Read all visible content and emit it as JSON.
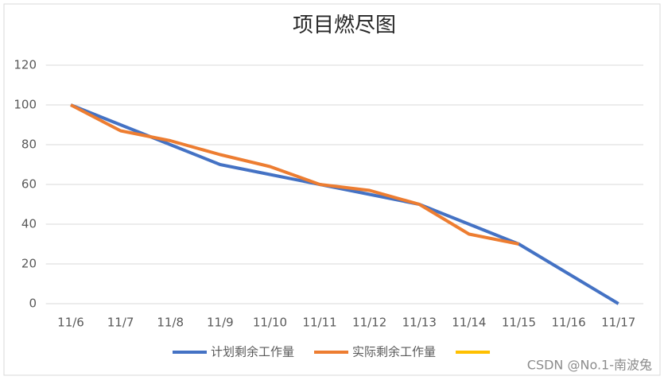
{
  "chart_data": {
    "type": "line",
    "title": "项目燃尽图",
    "categories": [
      "11/6",
      "11/7",
      "11/8",
      "11/9",
      "11/10",
      "11/11",
      "11/12",
      "11/13",
      "11/14",
      "11/15",
      "11/16",
      "11/17"
    ],
    "series": [
      {
        "name": "计划剩余工作量",
        "color": "#4472c4",
        "values": [
          100,
          90,
          80,
          70,
          65,
          60,
          55,
          50,
          40,
          30,
          15,
          0
        ]
      },
      {
        "name": "实际剩余工作量",
        "color": "#ed7d31",
        "values": [
          100,
          87,
          82,
          75,
          69,
          60,
          57,
          50,
          35,
          30,
          null,
          null
        ]
      },
      {
        "color": "#ffc000",
        "values": [
          null,
          null,
          null,
          null,
          null,
          null,
          null,
          null,
          null,
          null,
          null,
          null
        ]
      }
    ],
    "ylim": [
      0,
      120
    ],
    "yticks": [
      0,
      20,
      40,
      60,
      80,
      100,
      120
    ],
    "grid": true,
    "legend": "bottom",
    "watermark": "CSDN @No.1-南波兔"
  }
}
